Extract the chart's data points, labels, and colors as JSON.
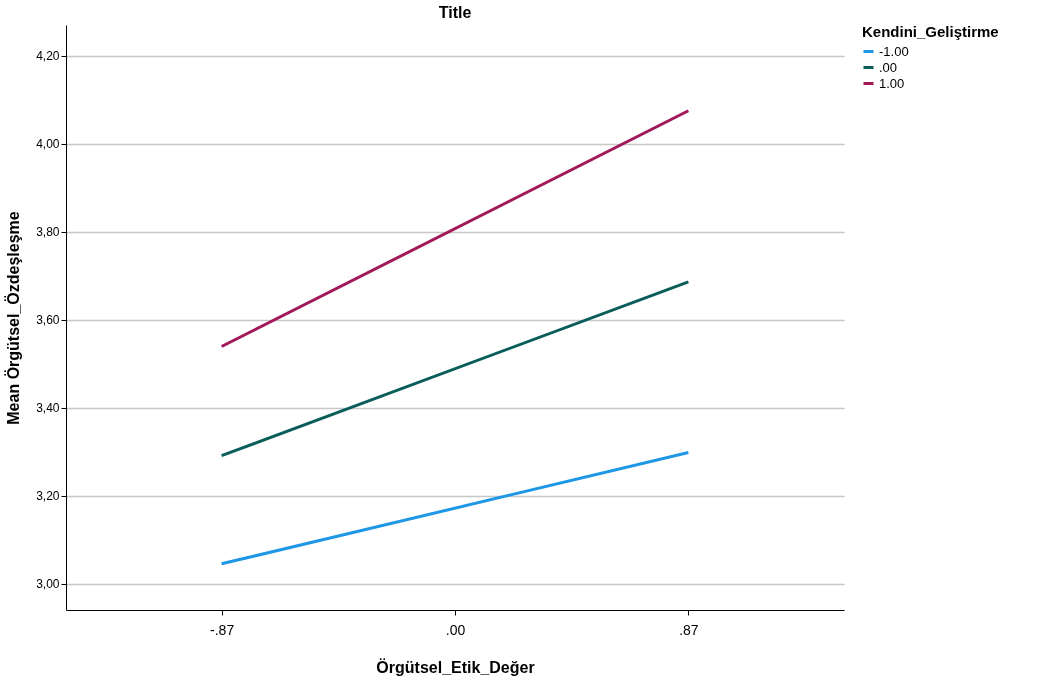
{
  "chart_data": {
    "type": "line",
    "title": "Title",
    "xlabel": "Örgütsel_Etik_Değer",
    "ylabel": "Mean Örgütsel_Özdeşleşme",
    "legend_title": "Kendini_Geliştirme",
    "x": [
      -0.87,
      0.87
    ],
    "xlim": [
      -1.45,
      1.45
    ],
    "xticks": [
      {
        "value": -0.87,
        "label": "-.87"
      },
      {
        "value": 0,
        "label": ".00"
      },
      {
        "value": 0.87,
        "label": ".87"
      }
    ],
    "ylim": [
      2.94,
      4.27
    ],
    "yticks": [
      {
        "value": 3.0,
        "label": "3,00"
      },
      {
        "value": 3.2,
        "label": "3,20"
      },
      {
        "value": 3.4,
        "label": "3,40"
      },
      {
        "value": 3.6,
        "label": "3,60"
      },
      {
        "value": 3.8,
        "label": "3,80"
      },
      {
        "value": 4.0,
        "label": "4,00"
      },
      {
        "value": 4.2,
        "label": "4,20"
      }
    ],
    "series": [
      {
        "name": "-1.00",
        "color": "#1e98e6",
        "values": [
          3.045,
          3.298
        ]
      },
      {
        "name": ".00",
        "color": "#0a5e5a",
        "values": [
          3.291,
          3.686
        ]
      },
      {
        "name": "1.00",
        "color": "#a2195a",
        "values": [
          3.539,
          4.075
        ]
      }
    ],
    "grid": "y",
    "legend": "top right",
    "marker": "none",
    "line_style": "solid"
  }
}
